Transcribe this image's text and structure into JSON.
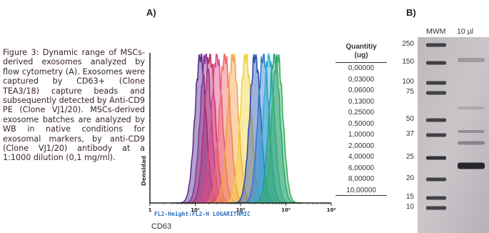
{
  "panel_labels": {
    "a": "A)",
    "b": "B)"
  },
  "caption": "Figure 3: Dynamic range of MSCs-derived exosomes analyzed by flow cytometry (A). Exosomes were captured by CD63+ (Clone TEA3/18) capture beads and subsequently detected by Anti-CD9 PE (Clone VJ1/20). MSCs-derived exosome batches are analyzed by WB in native conditions for exosomal markers, by anti-CD9 (Clone VJ1/20) antibody at a 1:1000 dilution (0,1 mg/ml).",
  "histogram": {
    "y_axis_label": "Densidad",
    "x_axis_label": "FL2-Height:FL2-H LOGARITHMIC",
    "x_tick_labels": [
      "1",
      "10¹",
      "10²",
      "10³",
      "10⁴"
    ],
    "bottom_label": "CD63"
  },
  "table": {
    "header_line1": "Quantitiy",
    "header_line2": "(ug)",
    "values": [
      "0,00000",
      "0,03000",
      "0,06000",
      "0,13000",
      "0,25000",
      "0,50000",
      "1,00000",
      "2,00000",
      "4,00000",
      "6,00000",
      "8,00000",
      "10,00000"
    ]
  },
  "blot": {
    "col_mwm": "MWM",
    "col_sample": "10 µl",
    "markers": [
      "250",
      "150",
      "100",
      "75",
      "50",
      "37",
      "25",
      "20",
      "15",
      "10"
    ]
  },
  "chart_data": {
    "type": "area",
    "title": "",
    "xlabel": "FL2-Height:FL2-H LOGARITHMIC",
    "ylabel": "Densidad",
    "x_scale": "log",
    "xlim": [
      1,
      10000
    ],
    "x_ticks": [
      "1",
      "10¹",
      "10²",
      "10³",
      "10⁴"
    ],
    "series_peak_positions": [
      13,
      17,
      21,
      30,
      45,
      68,
      130,
      210,
      320,
      420,
      560,
      650
    ],
    "series_quantities_ug": [
      "0,00000",
      "0,03000",
      "0,06000",
      "0,13000",
      "0,25000",
      "0,50000",
      "1,00000",
      "2,00000",
      "4,00000",
      "6,00000",
      "8,00000",
      "10,00000"
    ],
    "series_colors": [
      "#5b2f8c",
      "#8a3a9a",
      "#b8306a",
      "#e04a8a",
      "#f06a6a",
      "#f5a24a",
      "#f3d33a",
      "#2a4fb0",
      "#2f7fd0",
      "#2fb0d0",
      "#2aa090",
      "#3ab060"
    ]
  }
}
